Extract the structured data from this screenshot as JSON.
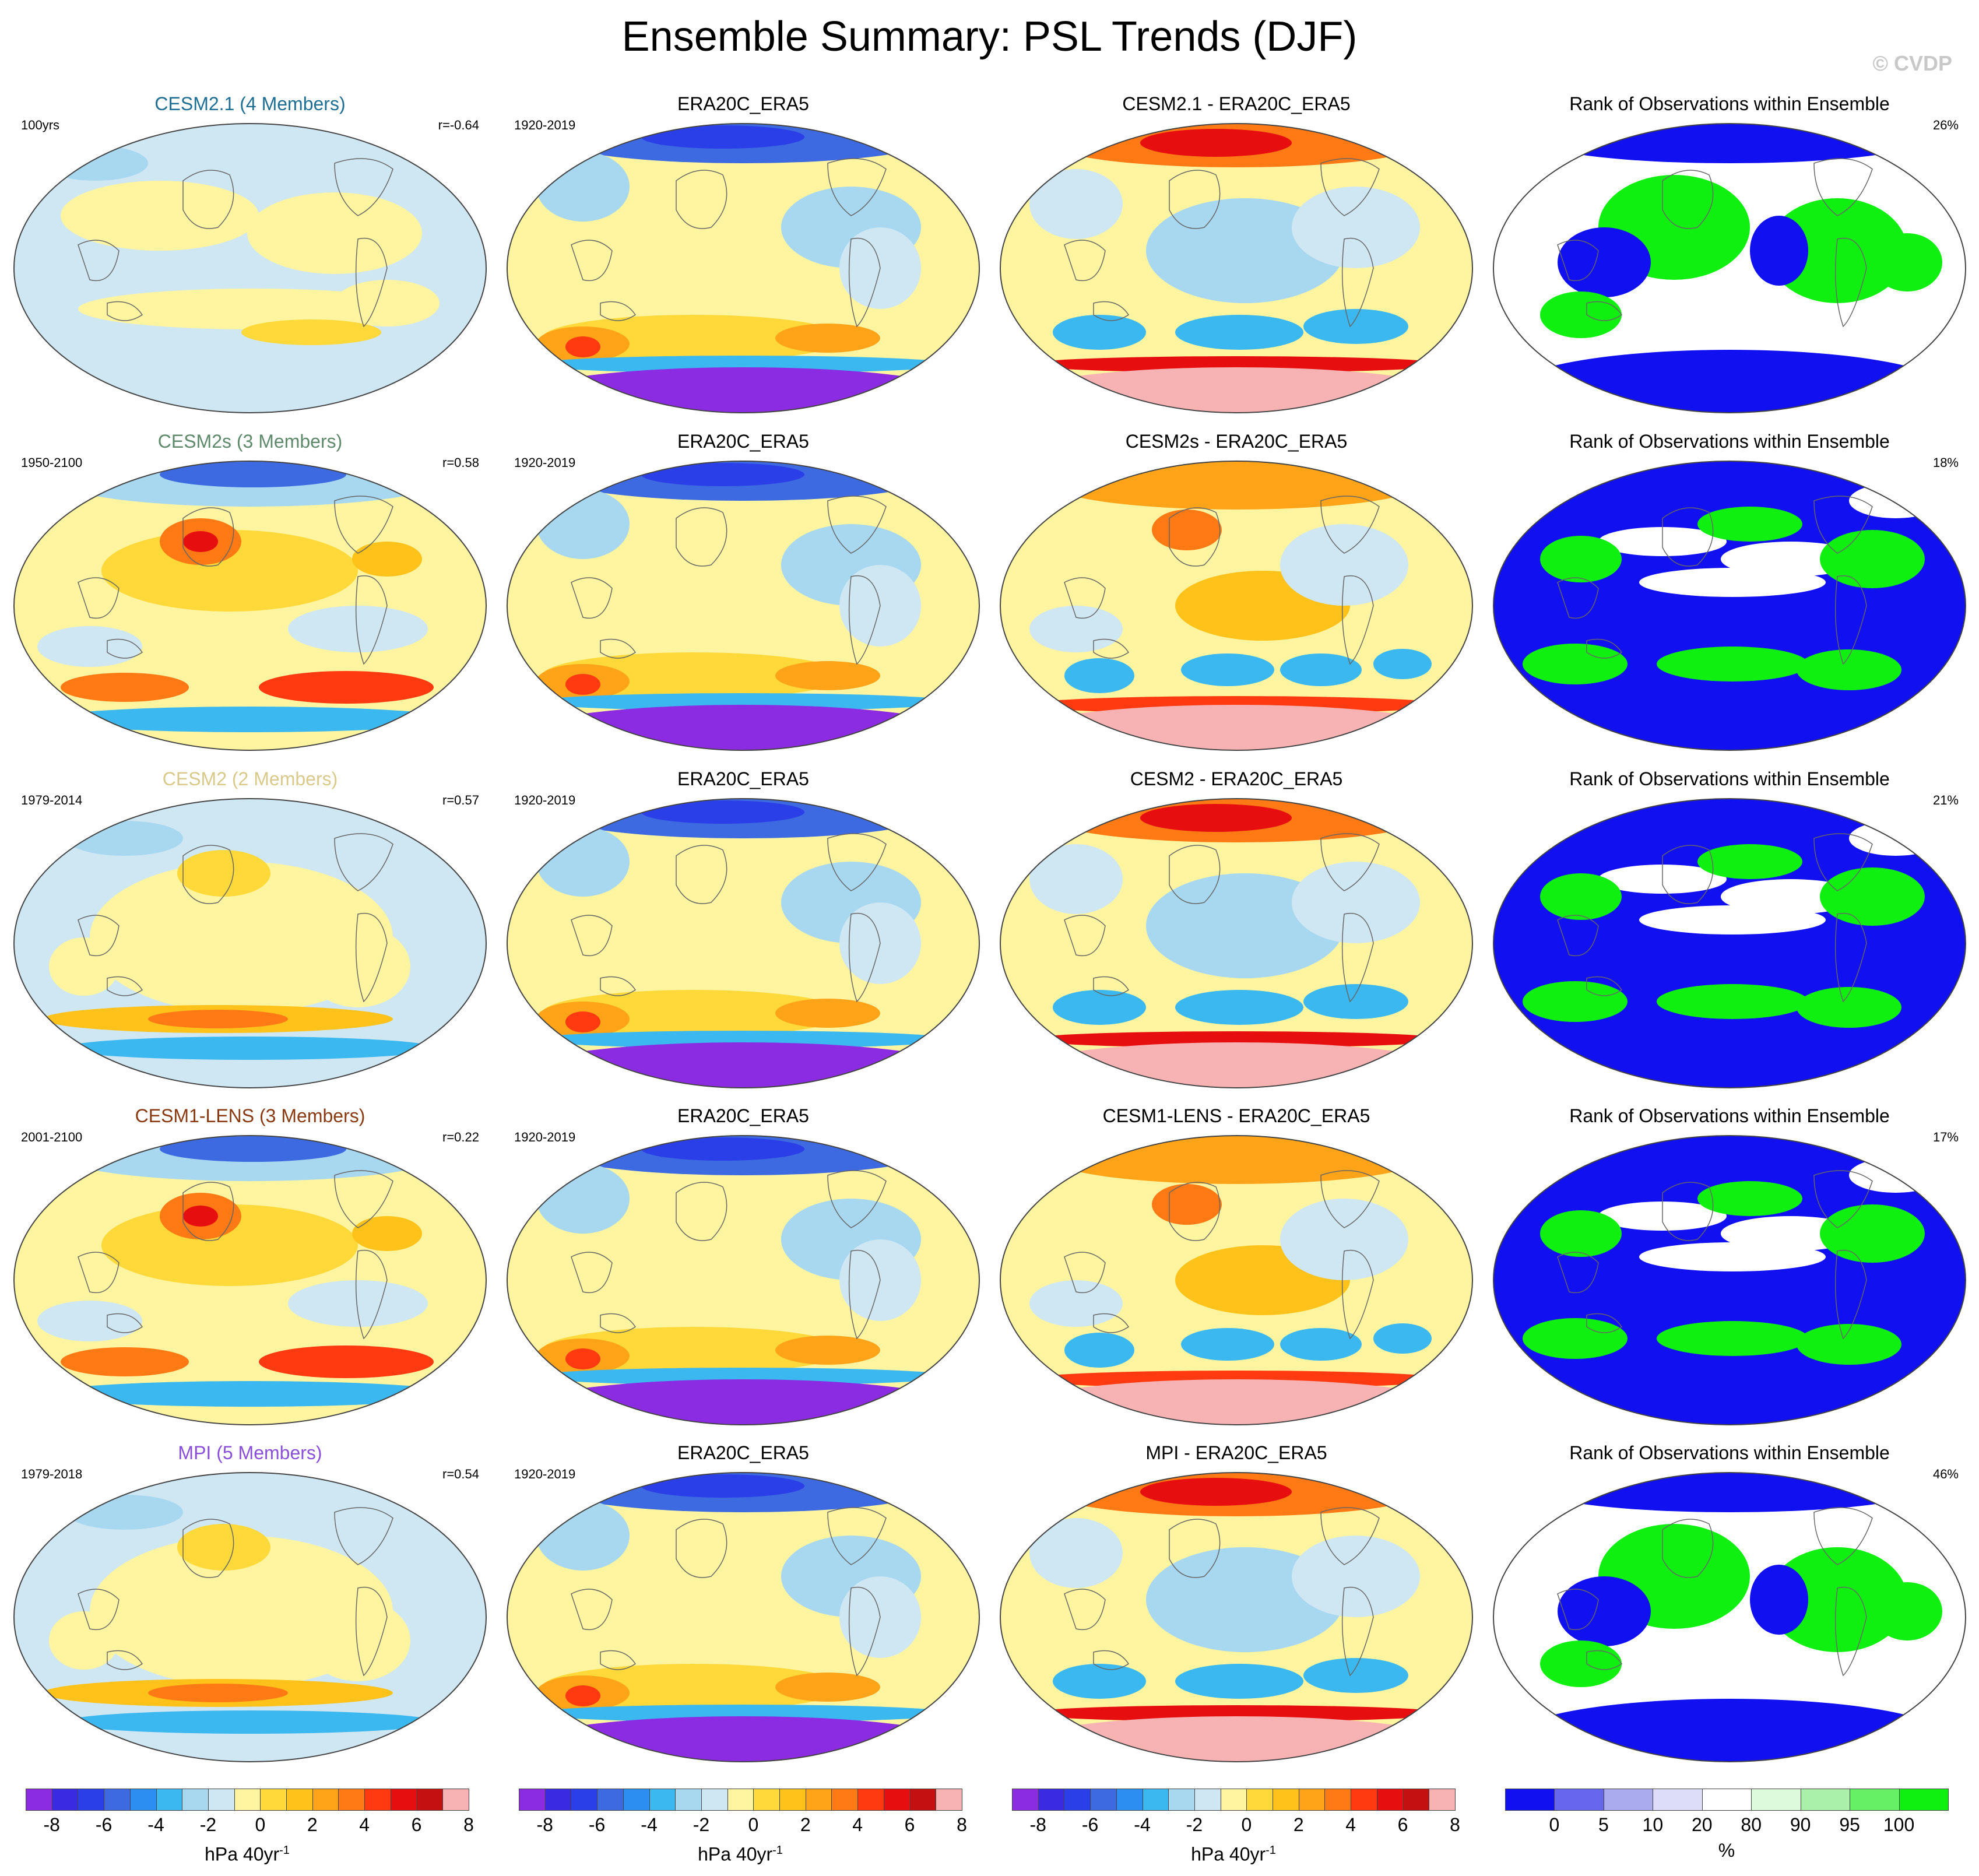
{
  "title": "Ensemble Summary: PSL Trends (DJF)",
  "credit": "© CVDP",
  "rows": [
    {
      "model": {
        "title": "CESM2.1 (4 Members)",
        "title_color": "#1f6e94",
        "left": "100yrs",
        "right": "r=-0.64",
        "theme": "calm"
      },
      "obs": {
        "title": "ERA20C_ERA5",
        "left": "1920-2019",
        "right": "",
        "theme": "obs"
      },
      "diff": {
        "title": "CESM2.1 - ERA20C_ERA5",
        "left": "",
        "right": "",
        "theme": "diffA"
      },
      "rank": {
        "title": "Rank of Observations within Ensemble",
        "left": "",
        "right": "26%",
        "theme": "rankA"
      }
    },
    {
      "model": {
        "title": "CESM2s (3 Members)",
        "title_color": "#5e8a6b",
        "left": "1950-2100",
        "right": "r=0.58",
        "theme": "warm"
      },
      "obs": {
        "title": "ERA20C_ERA5",
        "left": "1920-2019",
        "right": "",
        "theme": "obs"
      },
      "diff": {
        "title": "CESM2s - ERA20C_ERA5",
        "left": "",
        "right": "",
        "theme": "diffB"
      },
      "rank": {
        "title": "Rank of Observations within Ensemble",
        "left": "",
        "right": "18%",
        "theme": "rankB"
      }
    },
    {
      "model": {
        "title": "CESM2 (2 Members)",
        "title_color": "#d9c98a",
        "left": "1979-2014",
        "right": "r=0.57",
        "theme": "mild"
      },
      "obs": {
        "title": "ERA20C_ERA5",
        "left": "1920-2019",
        "right": "",
        "theme": "obs"
      },
      "diff": {
        "title": "CESM2 - ERA20C_ERA5",
        "left": "",
        "right": "",
        "theme": "diffA"
      },
      "rank": {
        "title": "Rank of Observations within Ensemble",
        "left": "",
        "right": "21%",
        "theme": "rankB"
      }
    },
    {
      "model": {
        "title": "CESM1-LENS (3 Members)",
        "title_color": "#8a3a12",
        "left": "2001-2100",
        "right": "r=0.22",
        "theme": "warm"
      },
      "obs": {
        "title": "ERA20C_ERA5",
        "left": "1920-2019",
        "right": "",
        "theme": "obs"
      },
      "diff": {
        "title": "CESM1-LENS - ERA20C_ERA5",
        "left": "",
        "right": "",
        "theme": "diffB"
      },
      "rank": {
        "title": "Rank of Observations within Ensemble",
        "left": "",
        "right": "17%",
        "theme": "rankB"
      }
    },
    {
      "model": {
        "title": "MPI (5 Members)",
        "title_color": "#8a4fd8",
        "left": "1979-2018",
        "right": "r=0.54",
        "theme": "mild"
      },
      "obs": {
        "title": "ERA20C_ERA5",
        "left": "1920-2019",
        "right": "",
        "theme": "obs"
      },
      "diff": {
        "title": "MPI - ERA20C_ERA5",
        "left": "",
        "right": "",
        "theme": "diffA"
      },
      "rank": {
        "title": "Rank of Observations within Ensemble",
        "left": "",
        "right": "46%",
        "theme": "rankA"
      }
    }
  ],
  "colorbar_psl": {
    "colors": [
      "#8b2be2",
      "#3a2be2",
      "#2b3fe8",
      "#3d6ae0",
      "#2b8ef0",
      "#3bb8f0",
      "#a8d8f0",
      "#cfe6f3",
      "#fff5a0",
      "#ffd93a",
      "#ffc21a",
      "#ffa319",
      "#ff7a14",
      "#ff3a10",
      "#e60e0e",
      "#c41010",
      "#f7b3b3"
    ],
    "ticks": [
      "-8",
      "-6",
      "-4",
      "-2",
      "0",
      "2",
      "4",
      "6",
      "8"
    ],
    "label": "hPa 40yr",
    "label_sup": "-1"
  },
  "colorbar_rank": {
    "colors": [
      "#1010f0",
      "#6666ee",
      "#aaaaee",
      "#ddddfa",
      "#ffffff",
      "#ddfadd",
      "#aaf0aa",
      "#66f066",
      "#10f010"
    ],
    "ticks": [
      "0",
      "5",
      "10",
      "20",
      "80",
      "90",
      "95",
      "100"
    ],
    "label": "%"
  }
}
